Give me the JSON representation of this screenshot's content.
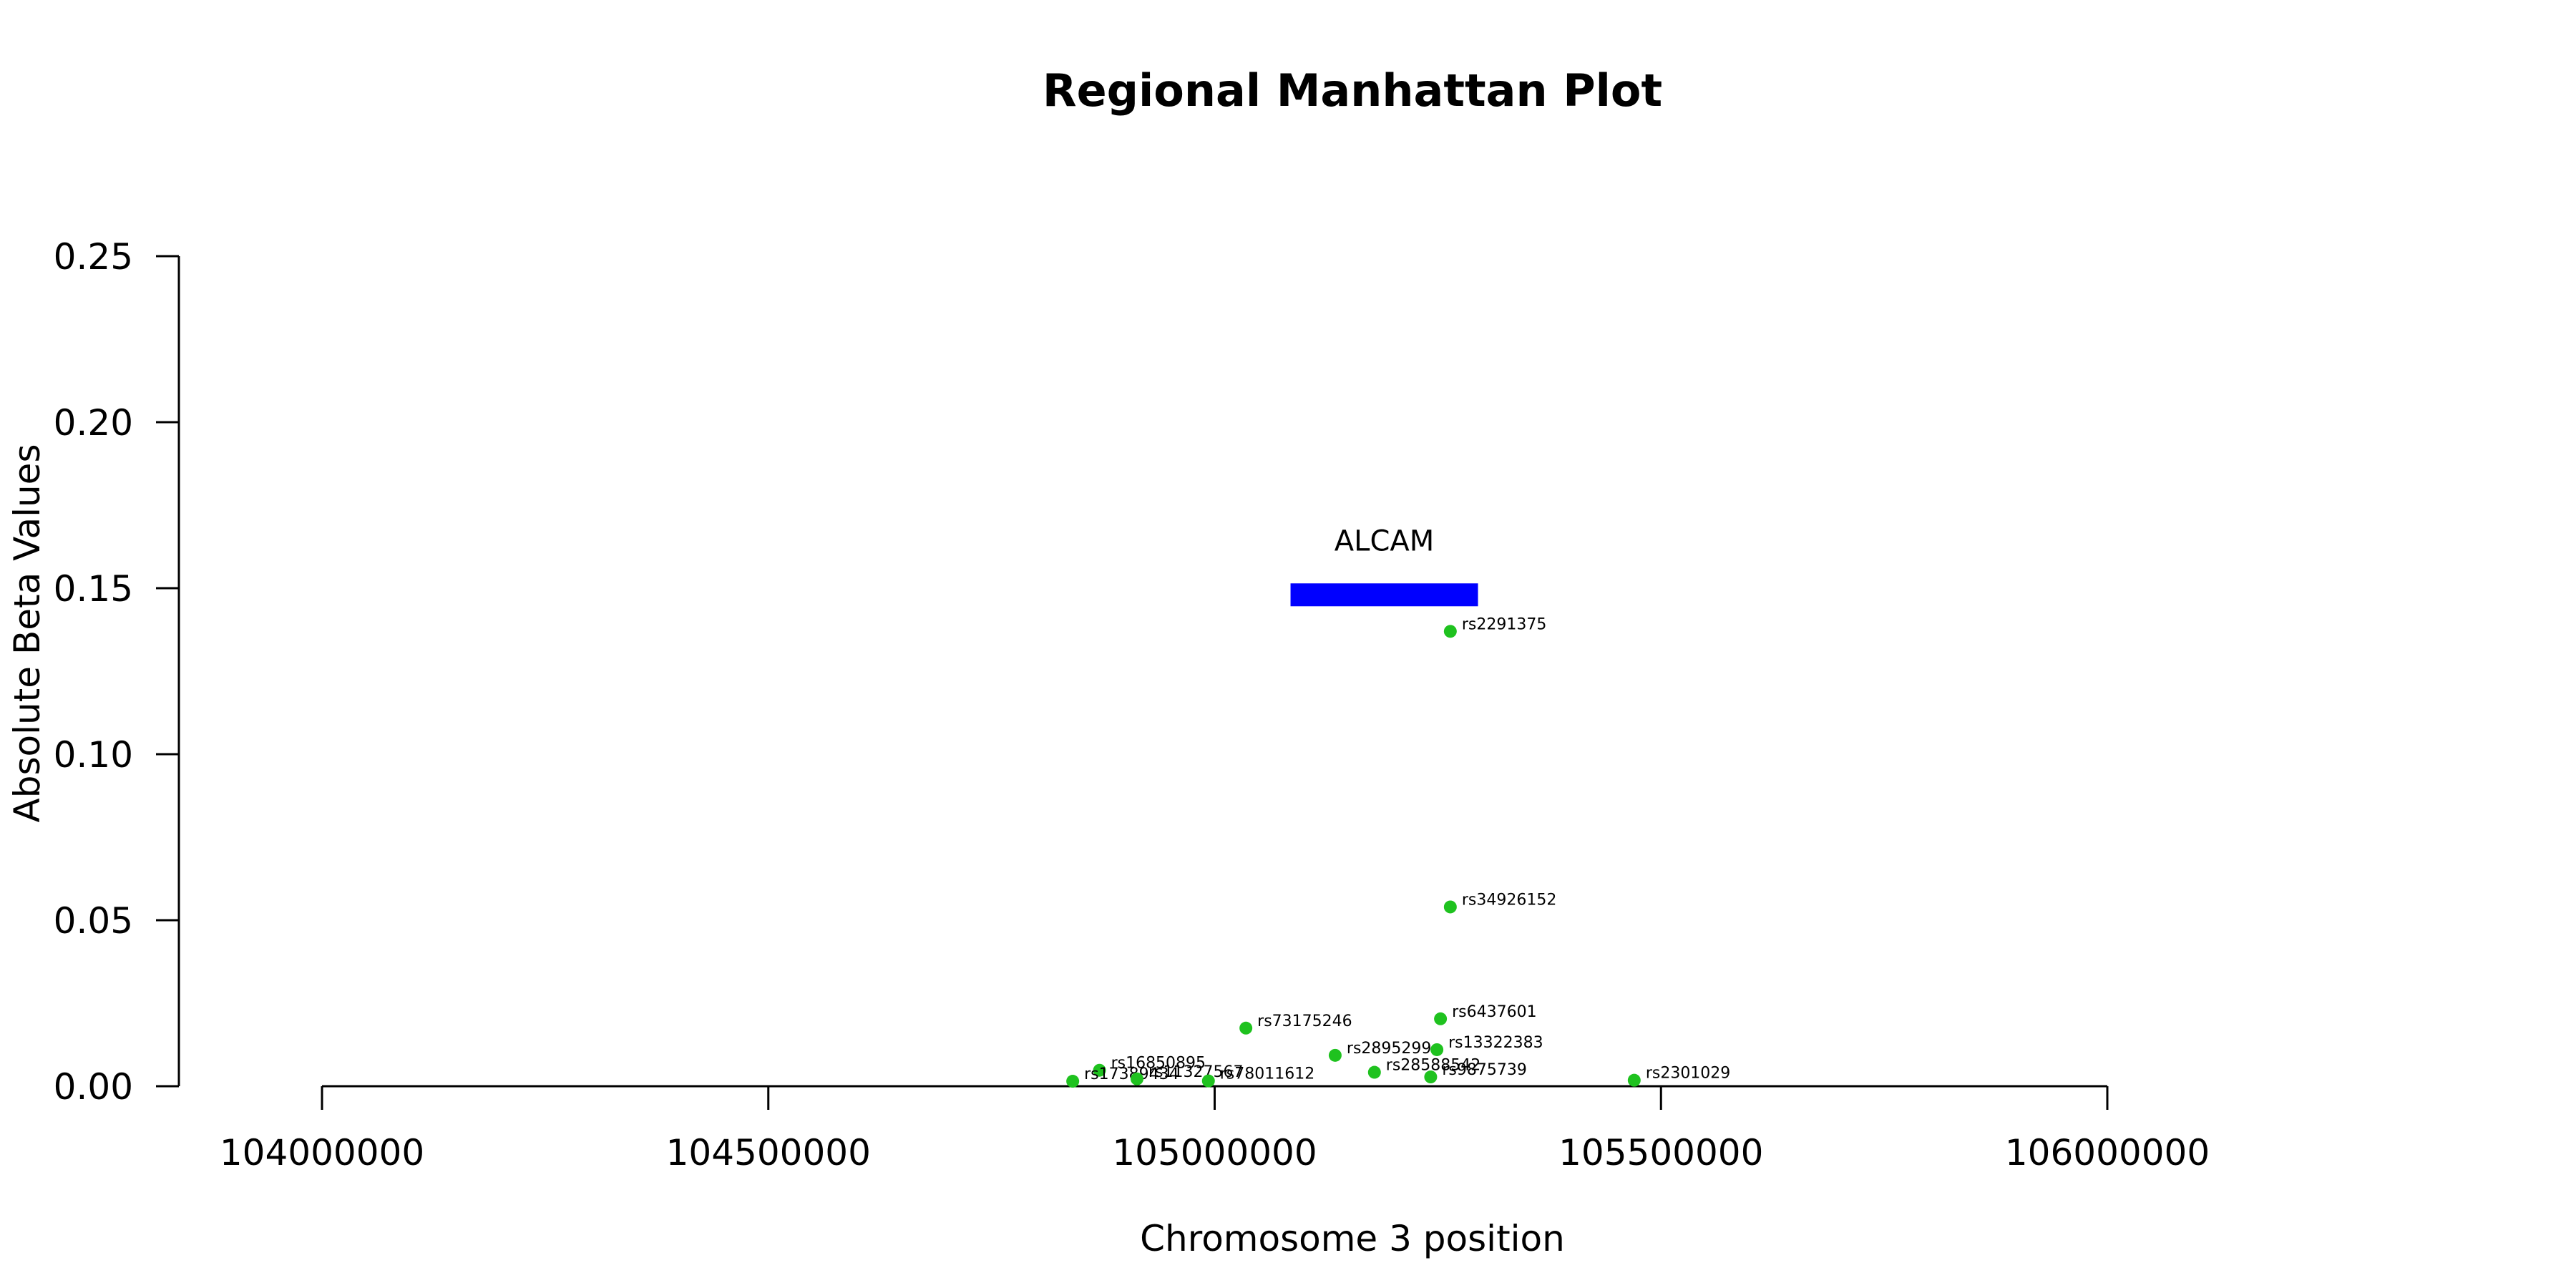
{
  "chart_data": {
    "type": "scatter",
    "title": "Regional Manhattan Plot",
    "xlabel": "Chromosome 3 position",
    "ylabel": "Absolute Beta Values",
    "xlim": [
      104000000,
      106000000
    ],
    "ylim": [
      0,
      0.25
    ],
    "x_ticks": [
      104000000,
      104500000,
      105000000,
      105500000,
      106000000
    ],
    "x_tick_labels": [
      "104000000",
      "104500000",
      "105000000",
      "105500000",
      "106000000"
    ],
    "y_ticks": [
      0,
      0.05,
      0.1,
      0.15,
      0.2,
      0.25
    ],
    "y_tick_labels": [
      "0.00",
      "0.05",
      "0.10",
      "0.15",
      "0.20",
      "0.25"
    ],
    "point_color": "#1fc21f",
    "gene": {
      "name": "ALCAM",
      "start": 105085000,
      "end": 105295000,
      "y": 0.148,
      "color": "#0000ff"
    },
    "points": [
      {
        "label": "rs2291375",
        "x": 105264000,
        "y": 0.137
      },
      {
        "label": "rs34926152",
        "x": 105264000,
        "y": 0.054
      },
      {
        "label": "rs73175246",
        "x": 105035000,
        "y": 0.0175
      },
      {
        "label": "rs6437601",
        "x": 105253000,
        "y": 0.0203
      },
      {
        "label": "rs2895299",
        "x": 105135000,
        "y": 0.0093
      },
      {
        "label": "rs13322383",
        "x": 105249000,
        "y": 0.011
      },
      {
        "label": "rs16850895",
        "x": 104871000,
        "y": 0.0048
      },
      {
        "label": "rs28588542",
        "x": 105179000,
        "y": 0.0042
      },
      {
        "label": "rs9875739",
        "x": 105242000,
        "y": 0.0028
      },
      {
        "label": "rs17389434",
        "x": 104841000,
        "y": 0.0015
      },
      {
        "label": "rs11327567",
        "x": 104913000,
        "y": 0.0022
      },
      {
        "label": "rs78011612",
        "x": 104993000,
        "y": 0.0016
      },
      {
        "label": "rs2301029",
        "x": 105470000,
        "y": 0.0018
      }
    ]
  }
}
